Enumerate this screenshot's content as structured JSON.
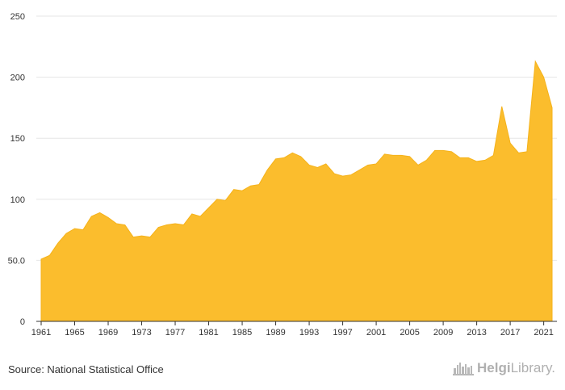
{
  "source": "Source: National Statistical Office",
  "logo": {
    "part1": "Helgi",
    "part2": "Library",
    "suffix": "."
  },
  "colors": {
    "area": "#fbbd2d",
    "area_stroke": "#f5b21a",
    "grid": "#e6e6e6",
    "axis": "#333333"
  },
  "chart_data": {
    "type": "area",
    "title": "",
    "xlabel": "",
    "ylabel": "",
    "ylim": [
      0,
      250
    ],
    "yticks": [
      {
        "value": 0,
        "label": "0"
      },
      {
        "value": 50,
        "label": "50.0"
      },
      {
        "value": 100,
        "label": "100"
      },
      {
        "value": 150,
        "label": "150"
      },
      {
        "value": 200,
        "label": "200"
      },
      {
        "value": 250,
        "label": "250"
      }
    ],
    "xticks": [
      1961,
      1965,
      1969,
      1973,
      1977,
      1981,
      1985,
      1989,
      1993,
      1997,
      2001,
      2005,
      2009,
      2013,
      2017,
      2021
    ],
    "grid": "horizontal",
    "x": [
      1961,
      1962,
      1963,
      1964,
      1965,
      1966,
      1967,
      1968,
      1969,
      1970,
      1971,
      1972,
      1973,
      1974,
      1975,
      1976,
      1977,
      1978,
      1979,
      1980,
      1981,
      1982,
      1983,
      1984,
      1985,
      1986,
      1987,
      1988,
      1989,
      1990,
      1991,
      1992,
      1993,
      1994,
      1995,
      1996,
      1997,
      1998,
      1999,
      2000,
      2001,
      2002,
      2003,
      2004,
      2005,
      2006,
      2007,
      2008,
      2009,
      2010,
      2011,
      2012,
      2013,
      2014,
      2015,
      2016,
      2017,
      2018,
      2019,
      2020,
      2021,
      2022
    ],
    "values": [
      51,
      54,
      64,
      72,
      76,
      75,
      86,
      89,
      85,
      80,
      79,
      69,
      70,
      69,
      77,
      79,
      80,
      79,
      88,
      86,
      93,
      100,
      99,
      108,
      107,
      111,
      112,
      124,
      133,
      134,
      138,
      135,
      128,
      126,
      129,
      121,
      119,
      120,
      124,
      128,
      129,
      137,
      136,
      136,
      135,
      128,
      132,
      140,
      140,
      139,
      134,
      134,
      131,
      132,
      136,
      176,
      146,
      138,
      139,
      213,
      200,
      175
    ]
  }
}
